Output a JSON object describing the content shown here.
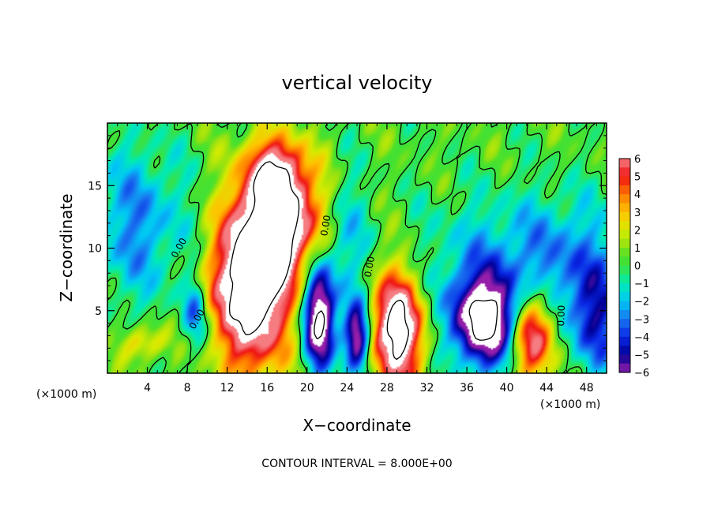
{
  "chart_data": {
    "type": "heatmap",
    "title": "vertical velocity",
    "xlabel": "X−coordinate",
    "ylabel": "Z−coordinate",
    "x_unit_label": "(×1000 m)",
    "x_unit_label_right": "(×1000 m)",
    "xlim": [
      0,
      50
    ],
    "ylim": [
      0,
      20
    ],
    "x_ticks": [
      4,
      8,
      12,
      16,
      20,
      24,
      28,
      32,
      36,
      40,
      44,
      48
    ],
    "x_tick_labels": [
      "4",
      "8",
      "12",
      "16",
      "20",
      "24",
      "28",
      "32",
      "36",
      "40",
      "44",
      "48"
    ],
    "y_ticks": [
      5,
      10,
      15
    ],
    "y_tick_labels": [
      "5",
      "10",
      "15"
    ],
    "colorbar": {
      "min": -6,
      "max": 6,
      "tick_values": [
        6,
        5,
        4,
        3,
        2,
        1,
        0,
        -1,
        -2,
        -3,
        -4,
        -5,
        -6
      ],
      "tick_labels": [
        "6",
        "5",
        "4",
        "3",
        "2",
        "1",
        "0",
        "−1",
        "−2",
        "−3",
        "−4",
        "−5",
        "−6"
      ]
    },
    "contour_interval_text": "CONTOUR INTERVAL = 8.000E+00",
    "contour_labels": [
      {
        "text": "0.00",
        "x": 7.2,
        "y": 10.0,
        "angle": -60
      },
      {
        "text": "0.00",
        "x": 9.0,
        "y": 4.3,
        "angle": -60
      },
      {
        "text": "0.00",
        "x": 21.9,
        "y": 11.8,
        "angle": -80
      },
      {
        "text": "0.00",
        "x": 26.3,
        "y": 8.5,
        "angle": -80
      },
      {
        "text": "0.00",
        "x": 45.5,
        "y": 4.6,
        "angle": -88
      }
    ],
    "features": [
      {
        "kind": "updraft",
        "x": 14.5,
        "z": 6.8,
        "sx": 2.6,
        "sz": 4.6,
        "amp": 10
      },
      {
        "kind": "updraft",
        "x": 17.5,
        "z": 12.5,
        "sx": 2.8,
        "sz": 3.2,
        "amp": 8
      },
      {
        "kind": "updraft",
        "x": 16.8,
        "z": 16.5,
        "sx": 2.0,
        "sz": 1.8,
        "amp": 4
      },
      {
        "kind": "updraft",
        "x": 29.0,
        "z": 3.5,
        "sx": 1.9,
        "sz": 3.2,
        "amp": 9
      },
      {
        "kind": "updraft",
        "x": 42.6,
        "z": 3.2,
        "sx": 1.6,
        "sz": 2.6,
        "amp": 8
      },
      {
        "kind": "updraft",
        "x": 3.6,
        "z": 2.4,
        "sx": 1.5,
        "sz": 1.0,
        "amp": 3
      },
      {
        "kind": "updraft",
        "x": 9.8,
        "z": 7.0,
        "sx": 1.2,
        "sz": 2.0,
        "amp": 1.5
      },
      {
        "kind": "downdraft",
        "x": 21.2,
        "z": 4.4,
        "sx": 1.1,
        "sz": 2.9,
        "amp": -9
      },
      {
        "kind": "downdraft",
        "x": 25.0,
        "z": 2.9,
        "sx": 0.9,
        "sz": 2.0,
        "amp": -8
      },
      {
        "kind": "downdraft",
        "x": 37.9,
        "z": 4.2,
        "sx": 2.6,
        "sz": 2.6,
        "amp": -9
      },
      {
        "kind": "downdraft",
        "x": 8.8,
        "z": 5.2,
        "sx": 0.9,
        "sz": 2.0,
        "amp": -4
      },
      {
        "kind": "downdraft",
        "x": 3.0,
        "z": 12.0,
        "sx": 3.5,
        "sz": 4.5,
        "amp": -3
      },
      {
        "kind": "downdraft",
        "x": 46.5,
        "z": 8.0,
        "sx": 4.0,
        "sz": 4.0,
        "amp": -2.5
      },
      {
        "kind": "downdraft",
        "x": 39.0,
        "z": 9.5,
        "sx": 6.0,
        "sz": 3.5,
        "amp": -2
      },
      {
        "kind": "downdraft",
        "x": 23.8,
        "z": 10.5,
        "sx": 1.5,
        "sz": 4.0,
        "amp": -2.5
      },
      {
        "kind": "downdraft",
        "x": 49.0,
        "z": 4.0,
        "sx": 1.8,
        "sz": 3.0,
        "amp": -3.5
      }
    ]
  }
}
